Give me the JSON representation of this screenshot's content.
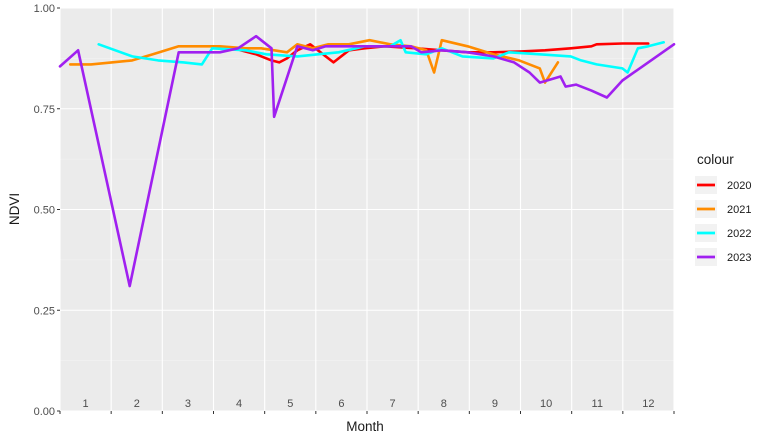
{
  "chart_data": {
    "type": "line",
    "xlabel": "Month",
    "ylabel": "NDVI",
    "xlim": [
      0.6,
      12.5
    ],
    "ylim": [
      0,
      1
    ],
    "y_ticks": [
      "0.00",
      "0.25",
      "0.50",
      "0.75",
      "1.00"
    ],
    "y_tick_values": [
      0,
      0.25,
      0.5,
      0.75,
      1.0
    ],
    "month_labels": [
      "1",
      "2",
      "3",
      "4",
      "5",
      "6",
      "7",
      "8",
      "9",
      "10",
      "11",
      "12"
    ],
    "grid": true,
    "legend": {
      "title": "colour",
      "position": "right"
    },
    "series": [
      {
        "name": "2020",
        "color": "#ff0000",
        "points": [
          [
            4.1,
            0.895
          ],
          [
            4.4,
            0.885
          ],
          [
            4.7,
            0.87
          ],
          [
            4.85,
            0.865
          ],
          [
            5.0,
            0.875
          ],
          [
            5.2,
            0.895
          ],
          [
            5.45,
            0.91
          ],
          [
            5.7,
            0.885
          ],
          [
            5.9,
            0.865
          ],
          [
            6.2,
            0.895
          ],
          [
            6.5,
            0.9
          ],
          [
            6.9,
            0.905
          ],
          [
            7.5,
            0.9
          ],
          [
            8.0,
            0.895
          ],
          [
            8.5,
            0.89
          ],
          [
            9.0,
            0.89
          ],
          [
            9.5,
            0.892
          ],
          [
            10.0,
            0.895
          ],
          [
            10.5,
            0.9
          ],
          [
            10.9,
            0.905
          ],
          [
            11.0,
            0.91
          ],
          [
            11.5,
            0.912
          ],
          [
            12.0,
            0.912
          ]
        ]
      },
      {
        "name": "2021",
        "color": "#ff8c00",
        "points": [
          [
            0.8,
            0.86
          ],
          [
            1.2,
            0.86
          ],
          [
            1.6,
            0.865
          ],
          [
            2.0,
            0.87
          ],
          [
            2.4,
            0.885
          ],
          [
            2.9,
            0.905
          ],
          [
            3.3,
            0.905
          ],
          [
            3.7,
            0.905
          ],
          [
            4.2,
            0.9
          ],
          [
            4.5,
            0.9
          ],
          [
            5.0,
            0.89
          ],
          [
            5.2,
            0.91
          ],
          [
            5.5,
            0.9
          ],
          [
            5.8,
            0.91
          ],
          [
            6.2,
            0.91
          ],
          [
            6.6,
            0.92
          ],
          [
            7.0,
            0.91
          ],
          [
            7.4,
            0.905
          ],
          [
            7.7,
            0.895
          ],
          [
            7.85,
            0.84
          ],
          [
            8.0,
            0.92
          ],
          [
            8.5,
            0.905
          ],
          [
            9.0,
            0.885
          ],
          [
            9.5,
            0.87
          ],
          [
            9.9,
            0.85
          ],
          [
            10.0,
            0.815
          ],
          [
            10.25,
            0.865
          ]
        ]
      },
      {
        "name": "2022",
        "color": "#00ffff",
        "points": [
          [
            1.35,
            0.91
          ],
          [
            2.0,
            0.88
          ],
          [
            2.5,
            0.87
          ],
          [
            3.0,
            0.865
          ],
          [
            3.35,
            0.86
          ],
          [
            3.55,
            0.9
          ],
          [
            4.2,
            0.895
          ],
          [
            4.6,
            0.885
          ],
          [
            5.2,
            0.88
          ],
          [
            5.6,
            0.885
          ],
          [
            6.0,
            0.89
          ],
          [
            6.5,
            0.905
          ],
          [
            7.0,
            0.905
          ],
          [
            7.2,
            0.92
          ],
          [
            7.3,
            0.89
          ],
          [
            7.7,
            0.885
          ],
          [
            8.0,
            0.9
          ],
          [
            8.4,
            0.88
          ],
          [
            9.0,
            0.875
          ],
          [
            9.3,
            0.89
          ],
          [
            9.9,
            0.885
          ],
          [
            10.5,
            0.88
          ],
          [
            10.7,
            0.87
          ],
          [
            11.0,
            0.86
          ],
          [
            11.5,
            0.85
          ],
          [
            11.6,
            0.84
          ],
          [
            11.8,
            0.9
          ],
          [
            12.0,
            0.905
          ],
          [
            12.3,
            0.915
          ]
        ]
      },
      {
        "name": "2023",
        "color": "#a020f0",
        "points": [
          [
            0.6,
            0.855
          ],
          [
            0.95,
            0.895
          ],
          [
            1.95,
            0.31
          ],
          [
            2.9,
            0.89
          ],
          [
            3.3,
            0.89
          ],
          [
            3.7,
            0.89
          ],
          [
            4.05,
            0.9
          ],
          [
            4.4,
            0.93
          ],
          [
            4.7,
            0.9
          ],
          [
            4.75,
            0.73
          ],
          [
            5.2,
            0.905
          ],
          [
            5.5,
            0.895
          ],
          [
            5.75,
            0.905
          ],
          [
            6.2,
            0.905
          ],
          [
            6.6,
            0.905
          ],
          [
            7.0,
            0.905
          ],
          [
            7.4,
            0.905
          ],
          [
            7.6,
            0.89
          ],
          [
            8.0,
            0.895
          ],
          [
            8.5,
            0.89
          ],
          [
            9.0,
            0.88
          ],
          [
            9.4,
            0.865
          ],
          [
            9.7,
            0.84
          ],
          [
            9.9,
            0.815
          ],
          [
            10.3,
            0.83
          ],
          [
            10.4,
            0.805
          ],
          [
            10.6,
            0.81
          ],
          [
            10.9,
            0.795
          ],
          [
            11.2,
            0.778
          ],
          [
            11.5,
            0.82
          ],
          [
            12.0,
            0.865
          ],
          [
            12.5,
            0.91
          ]
        ]
      }
    ]
  }
}
